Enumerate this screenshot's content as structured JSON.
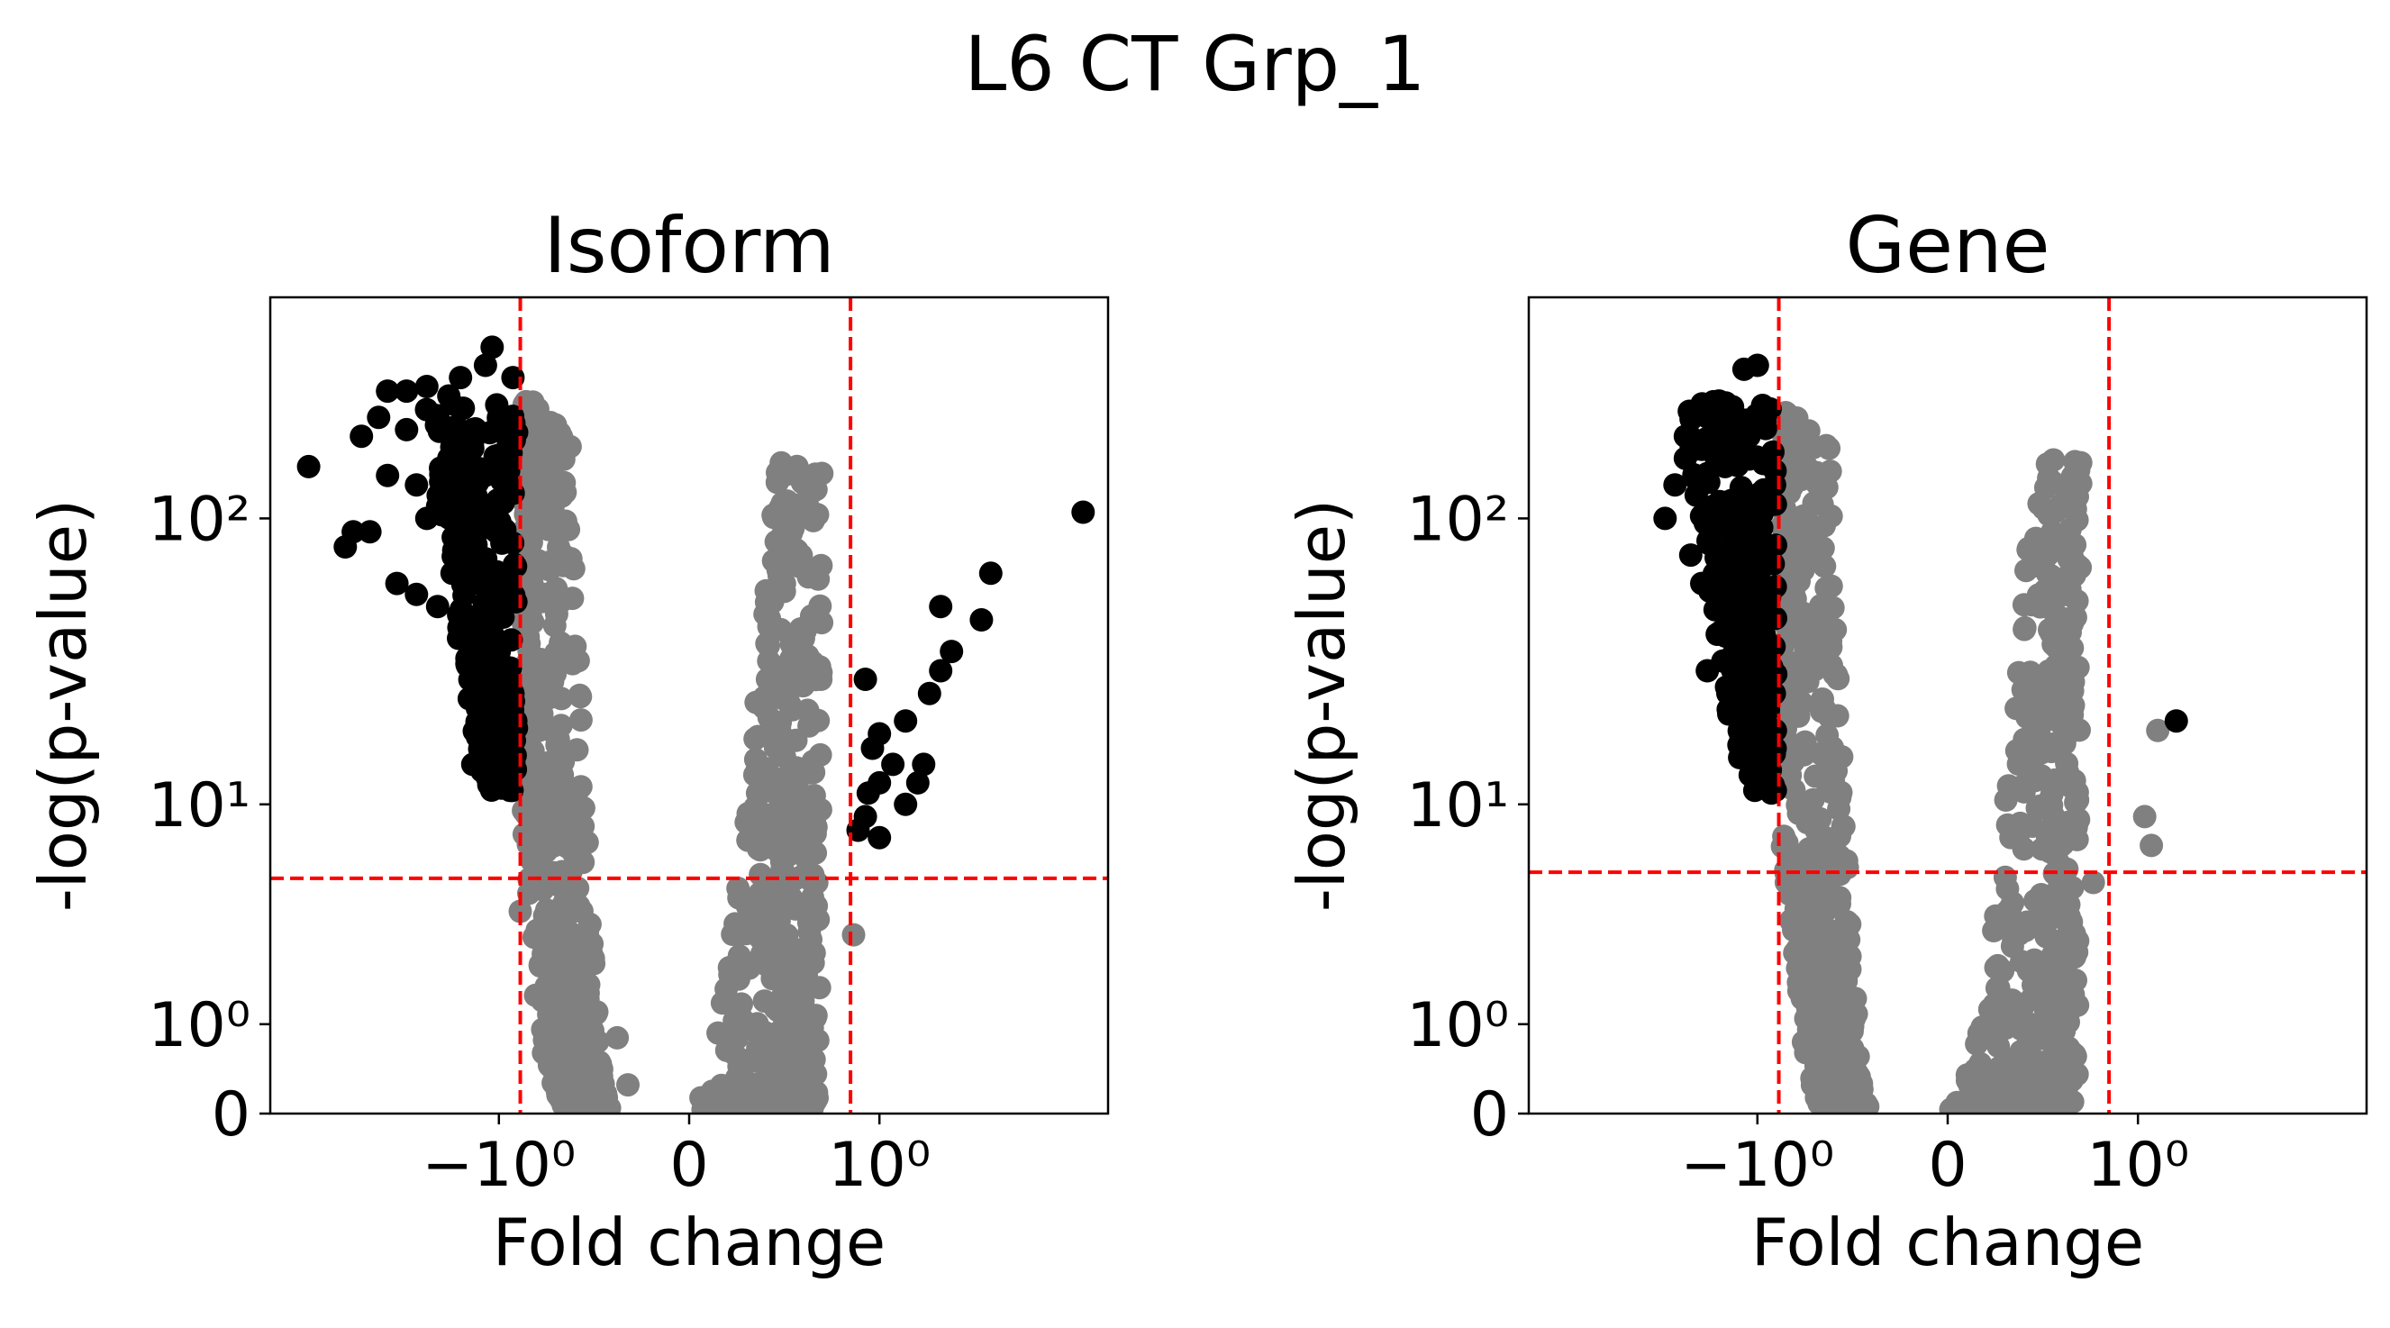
{
  "figure": {
    "title": "L6 CT Grp_1"
  },
  "styles": {
    "up_down_color": "#000000",
    "ns_color": "#808080",
    "threshold_color": "#ff0000"
  },
  "chart_data": [
    {
      "type": "scatter",
      "title": "Isoform",
      "xlabel": "Fold change",
      "ylabel": "-log(p-value)",
      "x_scale": "symlog",
      "y_scale": "symlog",
      "xlim": [
        -3.6,
        3.6
      ],
      "ylim": [
        0,
        560
      ],
      "x_ticks": [
        {
          "v": -1,
          "label": "−10⁰"
        },
        {
          "v": 0,
          "label": "0"
        },
        {
          "v": 1,
          "label": "10⁰"
        }
      ],
      "y_ticks": [
        {
          "v": 0,
          "label": "0"
        },
        {
          "v": 1,
          "label": "10⁰"
        },
        {
          "v": 10,
          "label": "10¹"
        },
        {
          "v": 100,
          "label": "10²"
        }
      ],
      "thresholds": {
        "fc_low": -0.85,
        "fc_high": 0.8,
        "p": 5.2
      },
      "significant_points": [
        [
          -3.0,
          150
        ],
        [
          -2.3,
          190
        ],
        [
          -2.1,
          220
        ],
        [
          -2.0,
          270
        ],
        [
          -2.5,
          80
        ],
        [
          -2.2,
          90
        ],
        [
          -1.9,
          60
        ],
        [
          -1.7,
          55
        ],
        [
          -1.5,
          50
        ],
        [
          -2.0,
          140
        ],
        [
          -1.8,
          270
        ],
        [
          -1.6,
          280
        ],
        [
          -1.4,
          260
        ],
        [
          -1.3,
          300
        ],
        [
          -1.2,
          200
        ],
        [
          -1.1,
          330
        ],
        [
          -1.05,
          380
        ],
        [
          -0.9,
          300
        ],
        [
          -1.3,
          40
        ],
        [
          -1.2,
          30
        ],
        [
          -1.1,
          20
        ],
        [
          -1.0,
          15
        ],
        [
          -0.95,
          13
        ],
        [
          -1.2,
          14
        ],
        [
          -1.5,
          110
        ],
        [
          -1.4,
          160
        ],
        [
          -1.7,
          130
        ],
        [
          -1.1,
          45
        ],
        [
          -1.0,
          35
        ],
        [
          -0.9,
          25
        ],
        [
          -0.88,
          20
        ],
        [
          -1.6,
          100
        ],
        [
          -2.4,
          90
        ],
        [
          -1.8,
          200
        ],
        [
          3.2,
          105
        ],
        [
          2.0,
          65
        ],
        [
          1.9,
          45
        ],
        [
          1.5,
          50
        ],
        [
          1.6,
          35
        ],
        [
          1.5,
          30
        ],
        [
          0.9,
          28
        ],
        [
          1.0,
          18
        ],
        [
          1.2,
          20
        ],
        [
          1.1,
          14
        ],
        [
          1.3,
          12
        ],
        [
          1.0,
          12
        ],
        [
          0.95,
          16
        ],
        [
          0.9,
          9
        ],
        [
          1.2,
          10
        ],
        [
          0.85,
          8
        ],
        [
          1.0,
          7.5
        ],
        [
          1.4,
          25
        ],
        [
          1.35,
          14
        ],
        [
          0.92,
          11
        ]
      ],
      "nonsig_points": [
        [
          -0.85,
          3.8
        ],
        [
          0.82,
          3.0
        ],
        [
          -0.75,
          1.5
        ],
        [
          -0.6,
          1.0
        ],
        [
          -0.7,
          0.6
        ],
        [
          -0.5,
          0.4
        ],
        [
          -0.4,
          1.2
        ],
        [
          -0.3,
          0.8
        ],
        [
          -0.55,
          0.2
        ],
        [
          0.15,
          0.1
        ],
        [
          0.3,
          0.5
        ],
        [
          0.45,
          1.4
        ],
        [
          0.6,
          3.5
        ],
        [
          0.5,
          2.2
        ],
        [
          0.35,
          0.3
        ],
        [
          -0.25,
          0.25
        ]
      ]
    },
    {
      "type": "scatter",
      "title": "Gene",
      "xlabel": "Fold change",
      "ylabel": "-log(p-value)",
      "x_scale": "symlog",
      "y_scale": "symlog",
      "xlim": [
        -3.6,
        3.6
      ],
      "ylim": [
        0,
        560
      ],
      "x_ticks": [
        {
          "v": -1,
          "label": "−10⁰"
        },
        {
          "v": 0,
          "label": "0"
        },
        {
          "v": 1,
          "label": "10⁰"
        }
      ],
      "y_ticks": [
        {
          "v": 0,
          "label": "0"
        },
        {
          "v": 1,
          "label": "10⁰"
        },
        {
          "v": 10,
          "label": "10¹"
        },
        {
          "v": 100,
          "label": "10²"
        }
      ],
      "thresholds": {
        "fc_low": -0.85,
        "fc_high": 0.8,
        "p": 5.5
      },
      "significant_points": [
        [
          -1.8,
          100
        ],
        [
          -1.7,
          130
        ],
        [
          -1.6,
          190
        ],
        [
          -1.5,
          180
        ],
        [
          -1.4,
          230
        ],
        [
          -1.3,
          250
        ],
        [
          -1.2,
          200
        ],
        [
          -1.1,
          320
        ],
        [
          -1.0,
          330
        ],
        [
          -1.55,
          75
        ],
        [
          -1.45,
          60
        ],
        [
          -1.3,
          50
        ],
        [
          -1.4,
          30
        ],
        [
          -1.2,
          22
        ],
        [
          -1.1,
          17
        ],
        [
          -1.0,
          14
        ],
        [
          -0.95,
          12
        ],
        [
          -0.9,
          11
        ],
        [
          -1.35,
          110
        ],
        [
          -1.25,
          150
        ],
        [
          -1.15,
          90
        ],
        [
          -1.05,
          60
        ],
        [
          -0.95,
          40
        ],
        [
          -0.88,
          25
        ],
        [
          -1.6,
          160
        ],
        [
          -1.5,
          120
        ],
        [
          1.3,
          20
        ]
      ],
      "nonsig_points": [
        [
          1.15,
          18.5
        ],
        [
          1.1,
          7.0
        ],
        [
          1.05,
          9.0
        ],
        [
          0.55,
          3.0
        ],
        [
          0.45,
          1.5
        ],
        [
          0.35,
          1.0
        ],
        [
          0.25,
          0.3
        ],
        [
          0.15,
          0.05
        ],
        [
          -0.6,
          0.8
        ],
        [
          -0.5,
          0.3
        ],
        [
          -0.4,
          0.1
        ],
        [
          -0.7,
          2.0
        ],
        [
          -0.8,
          5.0
        ],
        [
          0.7,
          5.0
        ],
        [
          0.6,
          2.5
        ]
      ]
    }
  ]
}
